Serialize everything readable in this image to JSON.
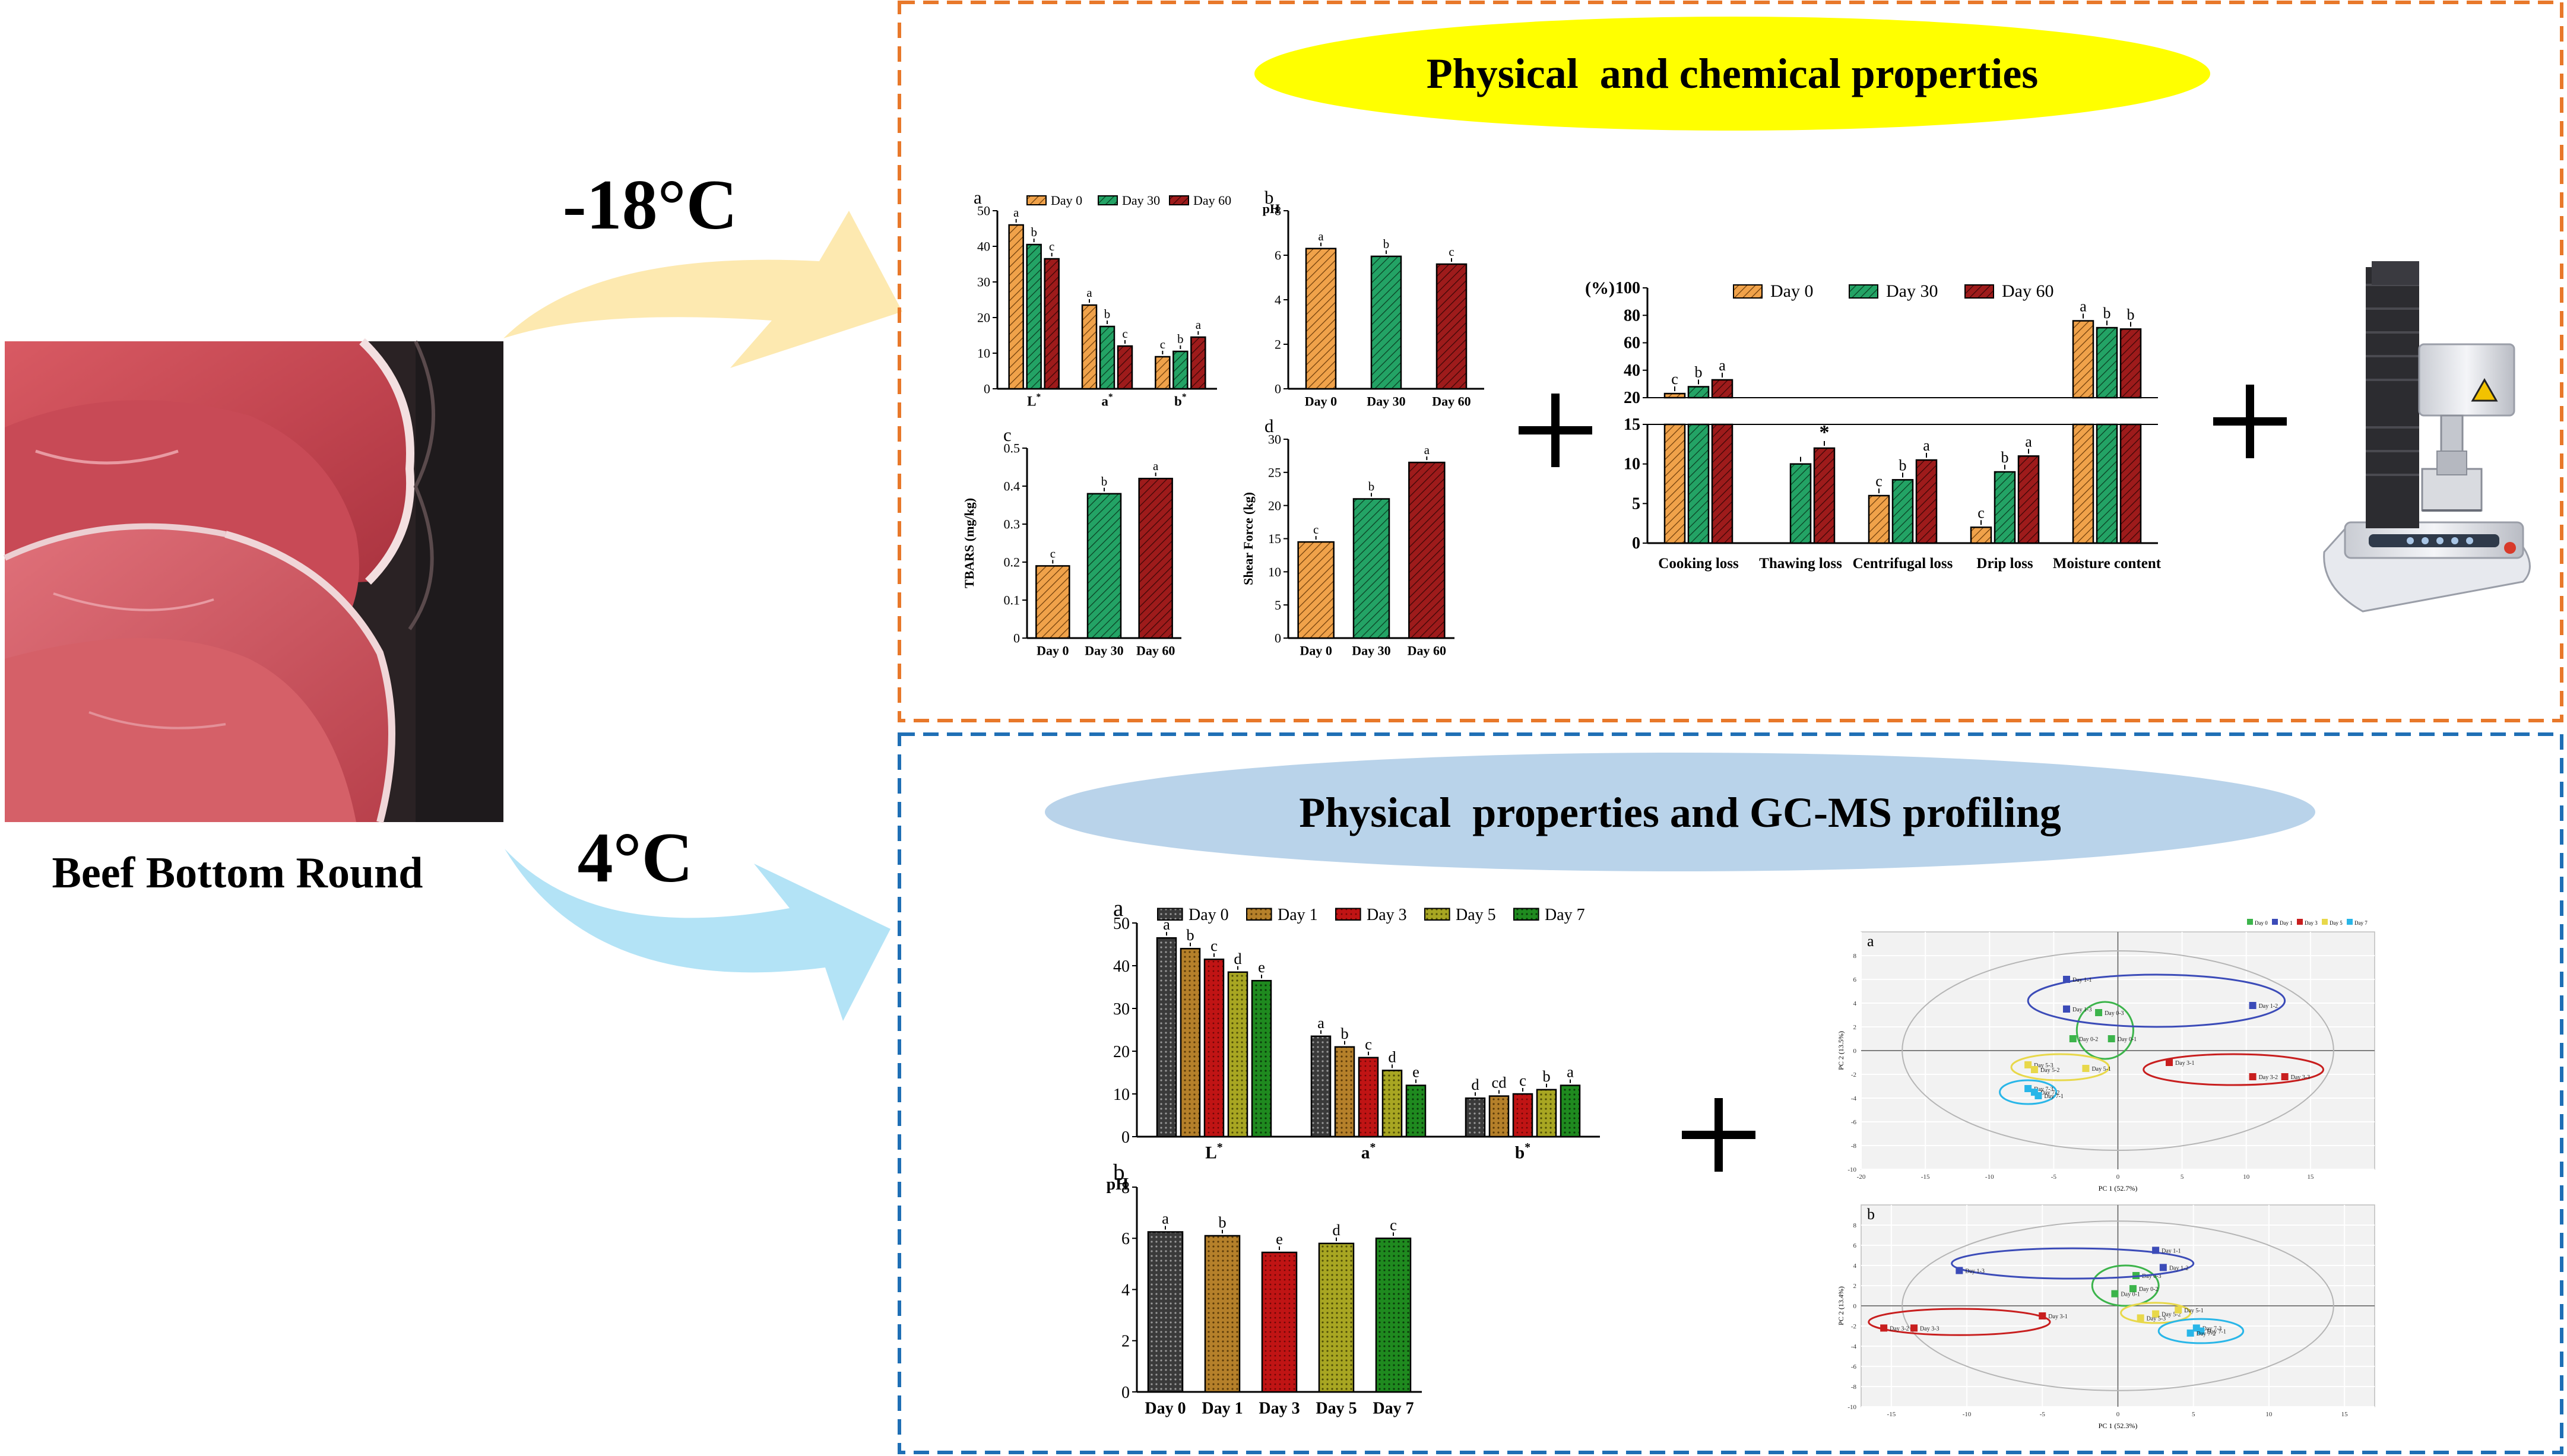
{
  "left": {
    "photo_label": "Beef Bottom Round",
    "temp_frozen": "-18°C",
    "temp_chilled": "4°C"
  },
  "top_panel": {
    "title": "Physical  and chemical properties"
  },
  "bottom_panel": {
    "title": "Physical  properties and GC-MS profiling"
  },
  "colors": {
    "orange_dash": "#e8782a",
    "blue_dash": "#1f6fb5",
    "title_yellow": "#ffff00",
    "title_blue": "#b9d3ea",
    "arrow_yellow": "#fde9b0",
    "arrow_blue": "#b3e3f6",
    "day0": "#f0a24a",
    "day30": "#23a365",
    "day60": "#9e1b1b",
    "d0": "#3a3a3a",
    "d1": "#b5802a",
    "d3": "#c01414",
    "d5": "#a8a622",
    "d7": "#1f8a1f"
  },
  "chart_data": [
    {
      "id": "top_a",
      "type": "bar",
      "panel_letter": "a",
      "categories": [
        "L*",
        "a*",
        "b*"
      ],
      "series": [
        {
          "name": "Day 0",
          "values": [
            46,
            23.5,
            9
          ],
          "letters": [
            "a",
            "a",
            "c"
          ]
        },
        {
          "name": "Day 30",
          "values": [
            40.5,
            17.5,
            10.5
          ],
          "letters": [
            "b",
            "b",
            "b"
          ]
        },
        {
          "name": "Day 60",
          "values": [
            36.5,
            12,
            14.5
          ],
          "letters": [
            "c",
            "c",
            "a"
          ]
        }
      ],
      "ylim": [
        0,
        50
      ],
      "yticks": [
        0,
        10,
        20,
        30,
        40,
        50
      ],
      "legend": "top"
    },
    {
      "id": "top_b",
      "type": "bar",
      "panel_letter": "b",
      "ylabel": "pH",
      "categories": [
        "Day 0",
        "Day 30",
        "Day 60"
      ],
      "values": [
        6.3,
        5.95,
        5.6
      ],
      "letters": [
        "a",
        "b",
        "c"
      ],
      "ylim": [
        0,
        8
      ],
      "yticks": [
        0,
        2,
        4,
        6,
        8
      ]
    },
    {
      "id": "top_c",
      "type": "bar",
      "panel_letter": "c",
      "ylabel": "TBARS (mg/kg)",
      "categories": [
        "Day 0",
        "Day 30",
        "Day 60"
      ],
      "values": [
        0.19,
        0.38,
        0.42
      ],
      "letters": [
        "c",
        "b",
        "a"
      ],
      "ylim": [
        0,
        0.5
      ],
      "yticks": [
        0.0,
        0.1,
        0.2,
        0.3,
        0.4,
        0.5
      ]
    },
    {
      "id": "top_d",
      "type": "bar",
      "panel_letter": "d",
      "ylabel": "Shear Force (kg)",
      "categories": [
        "Day 0",
        "Day 30",
        "Day 60"
      ],
      "values": [
        14.5,
        21,
        26.5
      ],
      "letters": [
        "c",
        "b",
        "a"
      ],
      "ylim": [
        0,
        30
      ],
      "yticks": [
        0,
        5,
        10,
        15,
        20,
        25,
        30
      ]
    },
    {
      "id": "top_loss",
      "type": "bar",
      "ylabel": "(%)",
      "categories": [
        "Cooking loss",
        "Thawing loss",
        "Centrifugal loss",
        "Drip loss",
        "Moisture content"
      ],
      "series": [
        {
          "name": "Day 0",
          "values": [
            23,
            null,
            6,
            2,
            76
          ],
          "letters": [
            "c",
            "",
            "c",
            "c",
            "a"
          ]
        },
        {
          "name": "Day 30",
          "values": [
            28,
            10,
            8,
            9,
            71
          ],
          "letters": [
            "b",
            "",
            "b",
            "b",
            "b"
          ]
        },
        {
          "name": "Day 60",
          "values": [
            33,
            12,
            10.5,
            11,
            70
          ],
          "letters": [
            "a",
            "*",
            "a",
            "a",
            "b"
          ]
        }
      ],
      "ylim": [
        0,
        100
      ],
      "axis_break": [
        15,
        20
      ],
      "yticks": [
        0,
        5,
        10,
        15,
        20,
        40,
        60,
        80,
        100
      ],
      "legend": "top"
    },
    {
      "id": "bot_a",
      "type": "bar",
      "panel_letter": "a",
      "categories": [
        "L*",
        "a*",
        "b*"
      ],
      "series": [
        {
          "name": "Day 0",
          "values": [
            46.5,
            23.5,
            9
          ],
          "letters": [
            "a",
            "a",
            "d"
          ]
        },
        {
          "name": "Day 1",
          "values": [
            44,
            21,
            9.5
          ],
          "letters": [
            "b",
            "b",
            "cd"
          ]
        },
        {
          "name": "Day 3",
          "values": [
            41.5,
            18.5,
            10
          ],
          "letters": [
            "c",
            "c",
            "c"
          ]
        },
        {
          "name": "Day 5",
          "values": [
            38.5,
            15.5,
            11
          ],
          "letters": [
            "d",
            "d",
            "b"
          ]
        },
        {
          "name": "Day 7",
          "values": [
            36.5,
            12,
            12
          ],
          "letters": [
            "e",
            "e",
            "a"
          ]
        }
      ],
      "ylim": [
        0,
        50
      ],
      "yticks": [
        0,
        10,
        20,
        30,
        40,
        50
      ],
      "legend": "top"
    },
    {
      "id": "bot_b",
      "type": "bar",
      "panel_letter": "b",
      "ylabel": "pH",
      "categories": [
        "Day 0",
        "Day 1",
        "Day 3",
        "Day 5",
        "Day 7"
      ],
      "values": [
        6.25,
        6.1,
        5.45,
        5.8,
        6.0
      ],
      "letters": [
        "a",
        "b",
        "e",
        "d",
        "c"
      ],
      "ylim": [
        0,
        8
      ],
      "yticks": [
        0,
        2,
        4,
        6,
        8
      ]
    },
    {
      "id": "pca_a",
      "type": "scatter",
      "panel_letter": "a",
      "xlabel": "PC 1 (52.7%)",
      "ylabel": "PC 2 (13.5%)",
      "xlim": [
        -20,
        20
      ],
      "ylim": [
        -10,
        10
      ],
      "xticks": [
        -20,
        -15,
        -10,
        -5,
        0,
        5,
        10,
        15
      ],
      "yticks": [
        -10,
        -8,
        -6,
        -4,
        -2,
        0,
        2,
        4,
        6,
        8
      ],
      "legend": "top-right",
      "series": [
        {
          "name": "Day 0",
          "color": "#3cb44b",
          "points": [
            [
              -1.5,
              3.2,
              "Day 0-3"
            ],
            [
              -3.5,
              1,
              "Day 0-2"
            ],
            [
              -0.5,
              1,
              "Day 0-1"
            ]
          ],
          "ellipse": [
            -1,
            1.7,
            2.2,
            2.4
          ]
        },
        {
          "name": "Day 1",
          "color": "#3b4bb8",
          "points": [
            [
              -4,
              6,
              "Day 1-1"
            ],
            [
              -4,
              3.5,
              "Day 1-3"
            ],
            [
              10.5,
              3.8,
              "Day 1-2"
            ]
          ],
          "ellipse": [
            3,
            4.2,
            10,
            2.2
          ]
        },
        {
          "name": "Day 3",
          "color": "#c81e1e",
          "points": [
            [
              4,
              -1,
              "Day 3-1"
            ],
            [
              10.5,
              -2.2,
              "Day 3-2"
            ],
            [
              13,
              -2.2,
              "Day 3-3"
            ]
          ],
          "ellipse": [
            9,
            -1.6,
            7,
            1.3
          ]
        },
        {
          "name": "Day 5",
          "color": "#e8d84a",
          "points": [
            [
              -7,
              -1.2,
              "Day 5-3"
            ],
            [
              -6.5,
              -1.6,
              "Day 5-2"
            ],
            [
              -2.5,
              -1.5,
              "Day 5-1"
            ]
          ],
          "ellipse": [
            -4.5,
            -1.4,
            3.8,
            1.1
          ]
        },
        {
          "name": "Day 7",
          "color": "#29b6e8",
          "points": [
            [
              -7,
              -3.2,
              "Day 7-3"
            ],
            [
              -6.5,
              -3.5,
              "Day 7-2"
            ],
            [
              -6.2,
              -3.8,
              "Day 7-1"
            ]
          ],
          "ellipse": [
            -7,
            -3.5,
            2.2,
            1.0
          ]
        }
      ]
    },
    {
      "id": "pca_b",
      "type": "scatter",
      "panel_letter": "b",
      "xlabel": "PC 1 (52.3%)",
      "ylabel": "PC 2 (13.4%)",
      "xlim": [
        -17,
        17
      ],
      "ylim": [
        -10,
        10
      ],
      "xticks": [
        -15,
        -10,
        -5,
        0,
        5,
        10,
        15
      ],
      "yticks": [
        -10,
        -8,
        -6,
        -4,
        -2,
        0,
        2,
        4,
        6,
        8
      ],
      "series": [
        {
          "name": "Day 0",
          "color": "#3cb44b",
          "points": [
            [
              1.2,
              3,
              "Day 0-3"
            ],
            [
              1,
              1.7,
              "Day 0-2"
            ],
            [
              -0.2,
              1.2,
              "Day 0-1"
            ]
          ],
          "ellipse": [
            0.5,
            2,
            2.2,
            2
          ]
        },
        {
          "name": "Day 1",
          "color": "#3b4bb8",
          "points": [
            [
              2.5,
              5.5,
              "Day 1-1"
            ],
            [
              3,
              3.8,
              "Day 1-2"
            ],
            [
              -10.5,
              3.5,
              "Day 1-3"
            ]
          ],
          "ellipse": [
            -3,
            4.2,
            8,
            1.5
          ]
        },
        {
          "name": "Day 3",
          "color": "#c81e1e",
          "points": [
            [
              -15.5,
              -2.2,
              "Day 3-2"
            ],
            [
              -13.5,
              -2.2,
              "Day 3-3"
            ],
            [
              -5,
              -1,
              "Day 3-1"
            ]
          ],
          "ellipse": [
            -10.5,
            -1.6,
            6,
            1.3
          ]
        },
        {
          "name": "Day 5",
          "color": "#e8d84a",
          "points": [
            [
              2.5,
              -0.8,
              "Day 5-2"
            ],
            [
              4,
              -0.4,
              "Day 5-1"
            ],
            [
              1.5,
              -1.2,
              "Day 5-3"
            ]
          ],
          "ellipse": [
            2.5,
            -0.7,
            2.3,
            1.0
          ]
        },
        {
          "name": "Day 7",
          "color": "#29b6e8",
          "points": [
            [
              5.2,
              -2.2,
              "Day 7-3"
            ],
            [
              5.5,
              -2.5,
              "Day 7-1"
            ],
            [
              4.8,
              -2.7,
              "Day 7-2"
            ]
          ],
          "ellipse": [
            5.5,
            -2.5,
            2.8,
            1.2
          ]
        }
      ]
    }
  ]
}
